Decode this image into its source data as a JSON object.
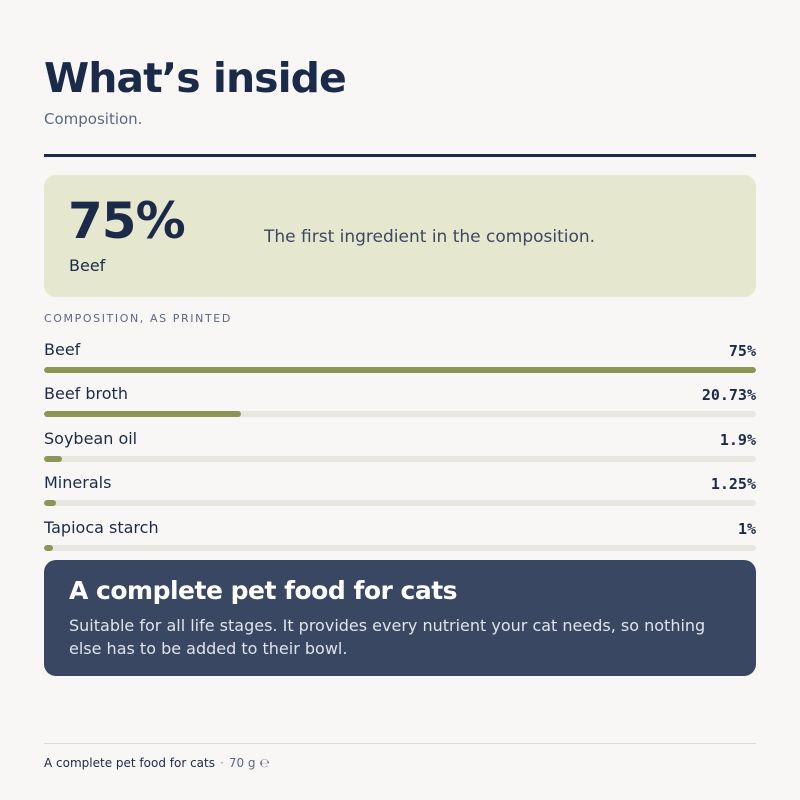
{
  "header": {
    "title": "What’s inside",
    "subtitle": "Composition."
  },
  "highlight": {
    "value": "75%",
    "name": "Beef",
    "description": "The first ingredient in the composition."
  },
  "composition": {
    "heading": "COMPOSITION, AS PRINTED",
    "items": [
      {
        "name": "Beef",
        "percent_label": "75%",
        "percent": 75
      },
      {
        "name": "Beef broth",
        "percent_label": "20.73%",
        "percent": 20.73
      },
      {
        "name": "Soybean oil",
        "percent_label": "1.9%",
        "percent": 1.9
      },
      {
        "name": "Minerals",
        "percent_label": "1.25%",
        "percent": 1.25
      },
      {
        "name": "Tapioca starch",
        "percent_label": "1%",
        "percent": 1
      }
    ]
  },
  "callout": {
    "title": "A complete pet food for cats",
    "text": "Suitable for all life stages. It provides every nutrient your cat needs, so nothing else has to be added to their bowl."
  },
  "footer": {
    "product": "A complete pet food for cats",
    "separator": "·",
    "weight": "70 g ℮"
  },
  "colors": {
    "bar_fill": "#8b9656",
    "bar_track": "#e8e6e1",
    "highlight_bg": "#e6e7cf",
    "callout_bg": "#3a4762",
    "ink": "#1c2a4a"
  }
}
